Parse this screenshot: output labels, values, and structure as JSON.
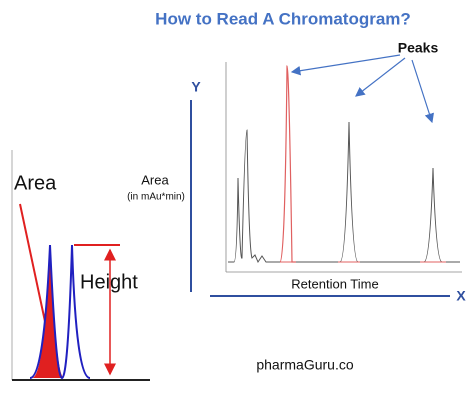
{
  "title": "How to Read A Chromatogram?",
  "peaks_label": "Peaks",
  "y_axis": {
    "letter": "Y",
    "label": "Area",
    "unit": "(in mAu*min)"
  },
  "x_axis": {
    "letter": "X",
    "label": "Retention Time"
  },
  "inset": {
    "area_label": "Area",
    "height_label": "Height"
  },
  "footer": "pharmaGuru.co"
}
